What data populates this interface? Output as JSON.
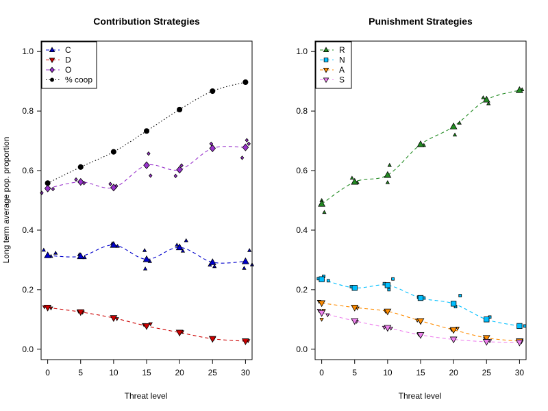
{
  "chart_data": [
    {
      "type": "line",
      "title": "Contribution Strategies",
      "xlabel": "Threat level",
      "ylabel": "Long term average pop. proportion",
      "xlim": [
        -1,
        31
      ],
      "ylim": [
        -0.035,
        1.035
      ],
      "x_ticks": [
        0,
        5,
        10,
        15,
        20,
        25,
        30
      ],
      "y_ticks": [
        0.0,
        0.2,
        0.4,
        0.6,
        0.8,
        1.0
      ],
      "y_tick_labels": [
        "0.0",
        "0.2",
        "0.4",
        "0.6",
        "0.8",
        "1.0"
      ],
      "legend_position": "top-left",
      "x": [
        0,
        5,
        10,
        15,
        20,
        25,
        30
      ],
      "series": [
        {
          "name": "C",
          "color": "#0000cc",
          "marker": "triangle-up",
          "dash": "5,4",
          "values": [
            0.315,
            0.312,
            0.35,
            0.302,
            0.342,
            0.292,
            0.295
          ],
          "scatter": [
            [
              -0.6,
              0.333
            ],
            [
              1.2,
              0.323
            ],
            [
              0.5,
              0.312
            ],
            [
              4.8,
              0.318
            ],
            [
              5.6,
              0.308
            ],
            [
              9.8,
              0.355
            ],
            [
              10.6,
              0.346
            ],
            [
              14.7,
              0.332
            ],
            [
              14.8,
              0.27
            ],
            [
              15.5,
              0.295
            ],
            [
              19.6,
              0.35
            ],
            [
              21.0,
              0.365
            ],
            [
              20.5,
              0.33
            ],
            [
              24.6,
              0.283
            ],
            [
              25.3,
              0.278
            ],
            [
              30.6,
              0.332
            ],
            [
              31.0,
              0.284
            ],
            [
              29.8,
              0.272
            ]
          ]
        },
        {
          "name": "D",
          "color": "#cc0000",
          "marker": "triangle-down",
          "dash": "5,4",
          "values": [
            0.14,
            0.125,
            0.105,
            0.078,
            0.056,
            0.035,
            0.027
          ],
          "scatter": [
            [
              -0.5,
              0.142
            ],
            [
              0.5,
              0.138
            ],
            [
              4.7,
              0.127
            ],
            [
              5.3,
              0.124
            ],
            [
              10.5,
              0.102
            ],
            [
              14.6,
              0.082
            ],
            [
              15.6,
              0.085
            ],
            [
              20.4,
              0.058
            ],
            [
              25.2,
              0.036
            ],
            [
              30.4,
              0.028
            ]
          ]
        },
        {
          "name": "O",
          "color": "#9933cc",
          "marker": "diamond",
          "dash": "5,4",
          "values": [
            0.54,
            0.562,
            0.543,
            0.618,
            0.603,
            0.675,
            0.678
          ],
          "scatter": [
            [
              -0.9,
              0.525
            ],
            [
              0.8,
              0.538
            ],
            [
              4.3,
              0.57
            ],
            [
              5.5,
              0.558
            ],
            [
              9.5,
              0.555
            ],
            [
              10.4,
              0.548
            ],
            [
              15.3,
              0.657
            ],
            [
              15.6,
              0.583
            ],
            [
              19.4,
              0.582
            ],
            [
              20.3,
              0.617
            ],
            [
              24.8,
              0.69
            ],
            [
              29.5,
              0.643
            ],
            [
              30.2,
              0.702
            ],
            [
              30.5,
              0.69
            ]
          ]
        },
        {
          "name": "% coop",
          "color": "#000000",
          "marker": "circle",
          "dash": "1.5,3",
          "values": [
            0.558,
            0.612,
            0.663,
            0.733,
            0.805,
            0.867,
            0.897
          ],
          "scatter": []
        }
      ]
    },
    {
      "type": "line",
      "title": "Punishment Strategies",
      "xlabel": "Threat level",
      "ylabel": "",
      "xlim": [
        -1,
        31
      ],
      "ylim": [
        -0.035,
        1.035
      ],
      "x_ticks": [
        0,
        5,
        10,
        15,
        20,
        25,
        30
      ],
      "y_ticks": [
        0.0,
        0.2,
        0.4,
        0.6,
        0.8,
        1.0
      ],
      "y_tick_labels": [
        "0.0",
        "0.2",
        "0.4",
        "0.6",
        "0.8",
        "1.0"
      ],
      "legend_position": "top-left",
      "x": [
        0,
        5,
        10,
        15,
        20,
        25,
        30
      ],
      "series": [
        {
          "name": "R",
          "color": "#228B22",
          "marker": "triangle-up",
          "dash": "5,4",
          "values": [
            0.488,
            0.562,
            0.585,
            0.688,
            0.748,
            0.838,
            0.87
          ],
          "scatter": [
            [
              0.0,
              0.5
            ],
            [
              0.4,
              0.46
            ],
            [
              4.6,
              0.575
            ],
            [
              5.4,
              0.56
            ],
            [
              10.0,
              0.56
            ],
            [
              10.3,
              0.618
            ],
            [
              15.5,
              0.685
            ],
            [
              20.2,
              0.72
            ],
            [
              20.9,
              0.76
            ],
            [
              24.5,
              0.845
            ],
            [
              25.3,
              0.825
            ],
            [
              30.4,
              0.872
            ]
          ]
        },
        {
          "name": "N",
          "color": "#00bfff",
          "marker": "square",
          "dash": "5,4",
          "values": [
            0.235,
            0.206,
            0.215,
            0.172,
            0.153,
            0.1,
            0.078
          ],
          "scatter": [
            [
              -0.5,
              0.237
            ],
            [
              0.3,
              0.245
            ],
            [
              1.0,
              0.23
            ],
            [
              4.5,
              0.21
            ],
            [
              9.5,
              0.22
            ],
            [
              10.2,
              0.2
            ],
            [
              10.8,
              0.236
            ],
            [
              14.7,
              0.175
            ],
            [
              15.5,
              0.172
            ],
            [
              20.3,
              0.143
            ],
            [
              21.0,
              0.18
            ],
            [
              25.5,
              0.108
            ],
            [
              30.8,
              0.078
            ]
          ]
        },
        {
          "name": "A",
          "color": "#ff8c00",
          "marker": "triangle-down",
          "dash": "5,4",
          "values": [
            0.155,
            0.14,
            0.127,
            0.095,
            0.065,
            0.038,
            0.027
          ],
          "scatter": [
            [
              -0.4,
              0.16
            ],
            [
              0.3,
              0.13
            ],
            [
              0.0,
              0.1
            ],
            [
              5.4,
              0.138
            ],
            [
              9.7,
              0.127
            ],
            [
              14.5,
              0.097
            ],
            [
              19.7,
              0.066
            ],
            [
              20.6,
              0.07
            ],
            [
              24.8,
              0.035
            ],
            [
              30.3,
              0.03
            ]
          ]
        },
        {
          "name": "S",
          "color": "#ee82ee",
          "marker": "triangle-down",
          "dash": "5,4",
          "values": [
            0.122,
            0.095,
            0.072,
            0.048,
            0.033,
            0.025,
            0.023
          ],
          "scatter": [
            [
              -0.4,
              0.13
            ],
            [
              0.9,
              0.115
            ],
            [
              5.3,
              0.093
            ],
            [
              9.5,
              0.073
            ],
            [
              10.5,
              0.07
            ],
            [
              14.7,
              0.05
            ],
            [
              20.0,
              0.032
            ],
            [
              25.5,
              0.028
            ],
            [
              30.3,
              0.025
            ]
          ]
        }
      ]
    }
  ]
}
